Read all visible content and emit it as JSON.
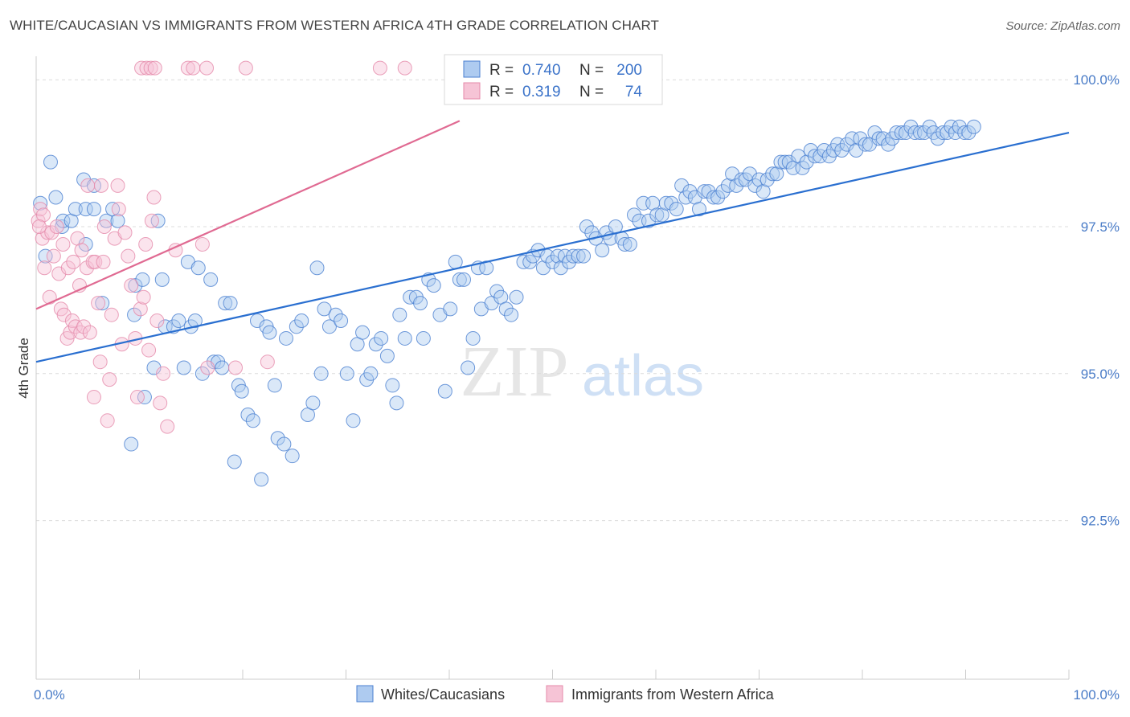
{
  "header": {
    "title": "WHITE/CAUCASIAN VS IMMIGRANTS FROM WESTERN AFRICA 4TH GRADE CORRELATION CHART",
    "source": "Source: ZipAtlas.com"
  },
  "watermark": {
    "zip": "ZIP",
    "atlas": "atlas"
  },
  "stats": {
    "blue": {
      "r_label": "R =",
      "r_value": "0.740",
      "n_label": "N =",
      "n_value": "200"
    },
    "pink": {
      "r_label": "R =",
      "r_value": "0.319",
      "n_label": "N =",
      "n_value": "74"
    }
  },
  "colors": {
    "blue": "#4a7fd1",
    "blue_fill": "#aecbf0",
    "blue_line": "#2a6fd0",
    "pink": "#e58aaa",
    "pink_fill": "#f6c4d6",
    "pink_line": "#e06a92",
    "grid": "#dcdcdc",
    "axis_text": "#4a7cc7"
  },
  "chart_data": {
    "type": "scatter",
    "title": "WHITE/CAUCASIAN VS IMMIGRANTS FROM WESTERN AFRICA 4TH GRADE CORRELATION CHART",
    "xlabel": "",
    "ylabel": "4th Grade",
    "xlim": [
      0,
      100
    ],
    "ylim": [
      89.8,
      100.4
    ],
    "y_ticks": [
      92.5,
      95.0,
      97.5,
      100.0
    ],
    "y_tick_labels": [
      "92.5%",
      "95.0%",
      "97.5%",
      "100.0%"
    ],
    "x_tick_labels": [
      "0.0%",
      "100.0%"
    ],
    "grid": true,
    "legend": [
      "Whites/Caucasians",
      "Immigrants from Western Africa"
    ],
    "series": [
      {
        "name": "Whites/Caucasians",
        "color": "#4a7fd1",
        "n": 200,
        "r": 0.74,
        "trendline": {
          "x": [
            0,
            100
          ],
          "y": [
            95.2,
            99.1
          ]
        },
        "points": [
          [
            0.4,
            97.9
          ],
          [
            0.9,
            97.0
          ],
          [
            1.4,
            98.6
          ],
          [
            1.9,
            98.0
          ],
          [
            2.5,
            97.5
          ],
          [
            2.6,
            97.6
          ],
          [
            3.4,
            97.6
          ],
          [
            3.8,
            97.8
          ],
          [
            4.6,
            98.3
          ],
          [
            4.8,
            97.8
          ],
          [
            4.8,
            97.2
          ],
          [
            5.6,
            98.2
          ],
          [
            5.6,
            97.8
          ],
          [
            6.4,
            96.2
          ],
          [
            6.8,
            97.6
          ],
          [
            7.4,
            97.8
          ],
          [
            7.9,
            97.6
          ],
          [
            9.2,
            93.8
          ],
          [
            9.5,
            96.0
          ],
          [
            9.6,
            96.5
          ],
          [
            10.3,
            96.6
          ],
          [
            10.5,
            94.6
          ],
          [
            11.4,
            95.1
          ],
          [
            11.8,
            97.6
          ],
          [
            12.2,
            96.6
          ],
          [
            12.5,
            95.8
          ],
          [
            13.3,
            95.8
          ],
          [
            13.8,
            95.9
          ],
          [
            14.3,
            95.1
          ],
          [
            14.7,
            96.9
          ],
          [
            15.0,
            95.8
          ],
          [
            15.4,
            95.9
          ],
          [
            15.7,
            96.8
          ],
          [
            16.1,
            95.0
          ],
          [
            16.9,
            96.6
          ],
          [
            17.2,
            95.2
          ],
          [
            17.6,
            95.2
          ],
          [
            18.0,
            95.1
          ],
          [
            18.3,
            96.2
          ],
          [
            18.8,
            96.2
          ],
          [
            19.2,
            93.5
          ],
          [
            19.6,
            94.8
          ],
          [
            19.9,
            94.7
          ],
          [
            20.5,
            94.3
          ],
          [
            21.0,
            94.2
          ],
          [
            21.4,
            95.9
          ],
          [
            21.8,
            93.2
          ],
          [
            22.3,
            95.8
          ],
          [
            22.6,
            95.7
          ],
          [
            23.1,
            94.8
          ],
          [
            23.4,
            93.9
          ],
          [
            24.0,
            93.8
          ],
          [
            24.2,
            95.6
          ],
          [
            24.8,
            93.6
          ],
          [
            25.2,
            95.8
          ],
          [
            25.7,
            95.9
          ],
          [
            26.3,
            94.3
          ],
          [
            26.8,
            94.5
          ],
          [
            27.2,
            96.8
          ],
          [
            27.6,
            95.0
          ],
          [
            27.9,
            96.1
          ],
          [
            28.4,
            95.8
          ],
          [
            29.0,
            96.0
          ],
          [
            29.5,
            95.9
          ],
          [
            30.1,
            95.0
          ],
          [
            30.7,
            94.2
          ],
          [
            31.1,
            95.5
          ],
          [
            31.6,
            95.7
          ],
          [
            32.0,
            94.9
          ],
          [
            32.4,
            95.0
          ],
          [
            32.9,
            95.5
          ],
          [
            33.4,
            95.6
          ],
          [
            34.0,
            95.3
          ],
          [
            34.5,
            94.8
          ],
          [
            34.9,
            94.5
          ],
          [
            35.2,
            96.0
          ],
          [
            35.7,
            95.6
          ],
          [
            36.2,
            96.3
          ],
          [
            36.8,
            96.3
          ],
          [
            37.2,
            96.2
          ],
          [
            37.5,
            95.6
          ],
          [
            38.0,
            96.6
          ],
          [
            38.5,
            96.5
          ],
          [
            39.1,
            96.0
          ],
          [
            39.6,
            94.7
          ],
          [
            40.1,
            96.1
          ],
          [
            40.6,
            96.9
          ],
          [
            41.0,
            96.6
          ],
          [
            41.4,
            96.6
          ],
          [
            41.8,
            95.1
          ],
          [
            42.3,
            95.6
          ],
          [
            42.8,
            96.8
          ],
          [
            43.1,
            96.1
          ],
          [
            43.6,
            96.8
          ],
          [
            44.1,
            96.2
          ],
          [
            44.6,
            96.4
          ],
          [
            45.0,
            96.3
          ],
          [
            45.5,
            96.1
          ],
          [
            46.0,
            96.0
          ],
          [
            46.5,
            96.3
          ],
          [
            47.2,
            96.9
          ],
          [
            47.8,
            96.9
          ],
          [
            48.1,
            97.0
          ],
          [
            48.6,
            97.1
          ],
          [
            49.1,
            96.8
          ],
          [
            49.5,
            97.0
          ],
          [
            50.0,
            96.9
          ],
          [
            50.5,
            97.0
          ],
          [
            50.8,
            96.8
          ],
          [
            51.2,
            97.0
          ],
          [
            51.6,
            96.9
          ],
          [
            52.0,
            97.0
          ],
          [
            52.5,
            97.0
          ],
          [
            53.0,
            97.0
          ],
          [
            53.3,
            97.5
          ],
          [
            53.8,
            97.4
          ],
          [
            54.2,
            97.3
          ],
          [
            54.8,
            97.1
          ],
          [
            55.2,
            97.4
          ],
          [
            55.6,
            97.3
          ],
          [
            56.1,
            97.5
          ],
          [
            56.7,
            97.3
          ],
          [
            57.0,
            97.2
          ],
          [
            57.5,
            97.2
          ],
          [
            57.9,
            97.7
          ],
          [
            58.4,
            97.6
          ],
          [
            58.8,
            97.9
          ],
          [
            59.3,
            97.6
          ],
          [
            59.7,
            97.9
          ],
          [
            60.1,
            97.7
          ],
          [
            60.6,
            97.7
          ],
          [
            61.0,
            97.9
          ],
          [
            61.5,
            97.9
          ],
          [
            62.0,
            97.8
          ],
          [
            62.5,
            98.2
          ],
          [
            62.9,
            98.0
          ],
          [
            63.3,
            98.1
          ],
          [
            63.8,
            98.0
          ],
          [
            64.2,
            97.8
          ],
          [
            64.7,
            98.1
          ],
          [
            65.1,
            98.1
          ],
          [
            65.6,
            98.0
          ],
          [
            66.0,
            98.0
          ],
          [
            66.5,
            98.1
          ],
          [
            67.0,
            98.2
          ],
          [
            67.4,
            98.4
          ],
          [
            67.8,
            98.2
          ],
          [
            68.3,
            98.3
          ],
          [
            68.7,
            98.3
          ],
          [
            69.1,
            98.4
          ],
          [
            69.6,
            98.2
          ],
          [
            70.0,
            98.3
          ],
          [
            70.4,
            98.1
          ],
          [
            70.8,
            98.3
          ],
          [
            71.3,
            98.4
          ],
          [
            71.7,
            98.4
          ],
          [
            72.1,
            98.6
          ],
          [
            72.5,
            98.6
          ],
          [
            72.9,
            98.6
          ],
          [
            73.3,
            98.5
          ],
          [
            73.8,
            98.7
          ],
          [
            74.2,
            98.5
          ],
          [
            74.6,
            98.6
          ],
          [
            75.0,
            98.8
          ],
          [
            75.4,
            98.7
          ],
          [
            75.9,
            98.7
          ],
          [
            76.3,
            98.8
          ],
          [
            76.8,
            98.7
          ],
          [
            77.2,
            98.8
          ],
          [
            77.6,
            98.9
          ],
          [
            78.0,
            98.8
          ],
          [
            78.5,
            98.9
          ],
          [
            79.0,
            99.0
          ],
          [
            79.4,
            98.8
          ],
          [
            79.8,
            99.0
          ],
          [
            80.3,
            98.9
          ],
          [
            80.7,
            98.9
          ],
          [
            81.2,
            99.1
          ],
          [
            81.6,
            99.0
          ],
          [
            82.0,
            99.0
          ],
          [
            82.5,
            98.9
          ],
          [
            82.9,
            99.0
          ],
          [
            83.3,
            99.1
          ],
          [
            83.8,
            99.1
          ],
          [
            84.2,
            99.1
          ],
          [
            84.7,
            99.2
          ],
          [
            85.1,
            99.1
          ],
          [
            85.6,
            99.1
          ],
          [
            86.0,
            99.1
          ],
          [
            86.5,
            99.2
          ],
          [
            86.9,
            99.1
          ],
          [
            87.3,
            99.0
          ],
          [
            87.8,
            99.1
          ],
          [
            88.2,
            99.1
          ],
          [
            88.6,
            99.2
          ],
          [
            89.0,
            99.1
          ],
          [
            89.4,
            99.2
          ],
          [
            89.9,
            99.1
          ],
          [
            90.3,
            99.1
          ],
          [
            90.8,
            99.2
          ]
        ]
      },
      {
        "name": "Immigrants from Western Africa",
        "color": "#e58aaa",
        "n": 74,
        "r": 0.319,
        "trendline": {
          "x": [
            0,
            41
          ],
          "y": [
            96.1,
            99.3
          ]
        },
        "points": [
          [
            0.2,
            97.6
          ],
          [
            0.4,
            97.8
          ],
          [
            0.6,
            97.3
          ],
          [
            0.7,
            97.7
          ],
          [
            0.8,
            96.8
          ],
          [
            1.1,
            97.4
          ],
          [
            1.3,
            96.3
          ],
          [
            1.5,
            97.4
          ],
          [
            1.7,
            97.0
          ],
          [
            2.0,
            97.5
          ],
          [
            2.2,
            96.7
          ],
          [
            2.4,
            96.1
          ],
          [
            2.6,
            97.2
          ],
          [
            2.7,
            96.0
          ],
          [
            3.0,
            95.6
          ],
          [
            3.1,
            96.8
          ],
          [
            3.3,
            95.7
          ],
          [
            3.5,
            95.9
          ],
          [
            3.6,
            96.9
          ],
          [
            3.8,
            95.8
          ],
          [
            4.0,
            97.3
          ],
          [
            4.2,
            96.5
          ],
          [
            4.3,
            95.7
          ],
          [
            4.4,
            97.1
          ],
          [
            4.6,
            95.8
          ],
          [
            4.9,
            96.8
          ],
          [
            5.0,
            98.2
          ],
          [
            5.2,
            95.7
          ],
          [
            5.5,
            96.9
          ],
          [
            5.6,
            94.6
          ],
          [
            5.7,
            96.9
          ],
          [
            6.0,
            96.2
          ],
          [
            6.2,
            95.2
          ],
          [
            6.3,
            98.2
          ],
          [
            6.5,
            96.9
          ],
          [
            6.6,
            97.5
          ],
          [
            6.9,
            94.2
          ],
          [
            7.1,
            94.9
          ],
          [
            7.3,
            96.0
          ],
          [
            7.6,
            97.3
          ],
          [
            7.9,
            98.2
          ],
          [
            8.0,
            97.8
          ],
          [
            8.3,
            95.5
          ],
          [
            8.6,
            97.4
          ],
          [
            8.9,
            97.0
          ],
          [
            9.2,
            96.5
          ],
          [
            9.6,
            95.6
          ],
          [
            9.8,
            94.6
          ],
          [
            10.1,
            96.1
          ],
          [
            10.4,
            96.3
          ],
          [
            10.6,
            97.2
          ],
          [
            10.9,
            95.4
          ],
          [
            11.2,
            97.6
          ],
          [
            11.4,
            98.0
          ],
          [
            11.7,
            95.9
          ],
          [
            12.0,
            94.5
          ],
          [
            12.3,
            95.0
          ],
          [
            12.7,
            94.1
          ],
          [
            13.5,
            97.1
          ],
          [
            16.1,
            97.2
          ],
          [
            16.6,
            95.1
          ],
          [
            19.3,
            95.1
          ],
          [
            22.4,
            95.2
          ],
          [
            20.3,
            100.2
          ],
          [
            10.2,
            100.2
          ],
          [
            10.7,
            100.2
          ],
          [
            11.1,
            100.2
          ],
          [
            11.5,
            100.2
          ],
          [
            14.7,
            100.2
          ],
          [
            15.2,
            100.2
          ],
          [
            16.5,
            100.2
          ],
          [
            33.3,
            100.2
          ],
          [
            35.7,
            100.2
          ],
          [
            0.3,
            97.5
          ]
        ]
      }
    ]
  }
}
